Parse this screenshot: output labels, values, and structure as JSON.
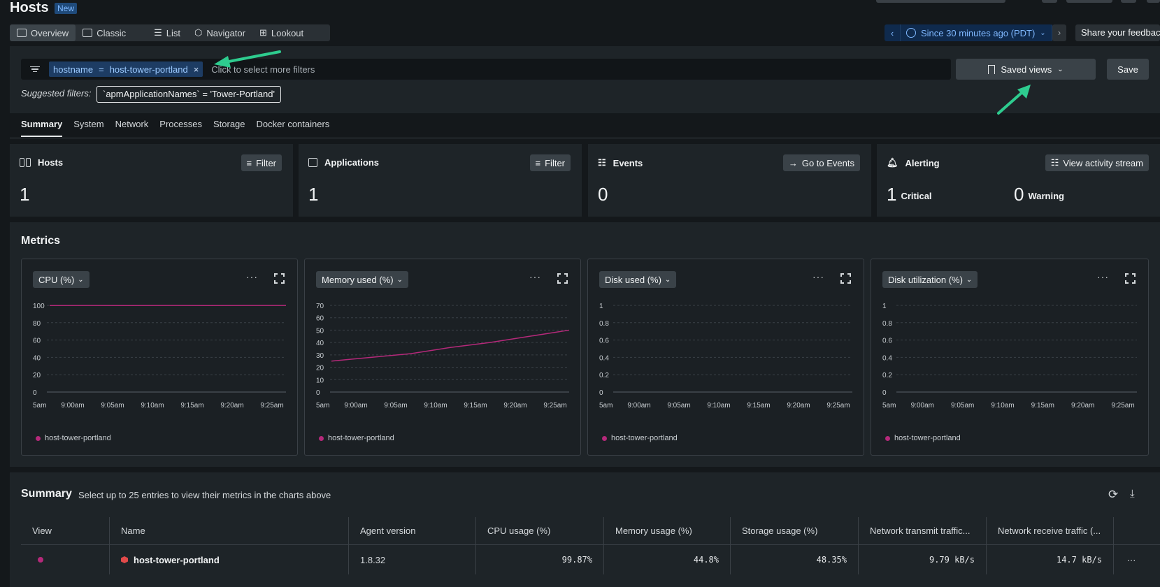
{
  "header": {
    "title": "Hosts",
    "badge": "New"
  },
  "view_tabs": [
    {
      "label": "Overview",
      "icon": "dashboard-icon",
      "active": true
    },
    {
      "label": "Classic",
      "icon": "table-icon",
      "active": false
    },
    {
      "label": "List",
      "icon": "list-icon",
      "active": false
    },
    {
      "label": "Navigator",
      "icon": "hex-cluster-icon",
      "active": false
    },
    {
      "label": "Lookout",
      "icon": "grid-icon",
      "active": false
    }
  ],
  "time_picker": {
    "label": "Since 30 minutes ago (PDT)"
  },
  "feedback": {
    "label": "Share your feedbac"
  },
  "filter": {
    "chip_key": "hostname",
    "chip_op": "=",
    "chip_value": "host-tower-portland",
    "placeholder": "Click to select more filters",
    "saved_views": "Saved views",
    "save": "Save",
    "suggested_label": "Suggested filters:",
    "suggested_value": "`apmApplicationNames` = 'Tower-Portland'"
  },
  "section_tabs": [
    "Summary",
    "System",
    "Network",
    "Processes",
    "Storage",
    "Docker containers"
  ],
  "cards": {
    "hosts": {
      "title": "Hosts",
      "button": "Filter",
      "value": "1"
    },
    "applications": {
      "title": "Applications",
      "button": "Filter",
      "value": "1"
    },
    "events": {
      "title": "Events",
      "button": "Go to Events",
      "value": "0"
    },
    "alerting": {
      "title": "Alerting",
      "button": "View activity stream",
      "critical_value": "1",
      "critical_label": "Critical",
      "warning_value": "0",
      "warning_label": "Warning"
    }
  },
  "metrics": {
    "title": "Metrics"
  },
  "chart_data": [
    {
      "type": "line",
      "title": "CPU (%)",
      "x": [
        "5am",
        "9:00am",
        "9:05am",
        "9:10am",
        "9:15am",
        "9:20am",
        "9:25am"
      ],
      "yticks": [
        "100",
        "80",
        "60",
        "40",
        "20",
        "0"
      ],
      "ylim": [
        0,
        100
      ],
      "series": [
        {
          "name": "host-tower-portland",
          "x": [
            0,
            1,
            2,
            3,
            4,
            5,
            6
          ],
          "values": [
            99.8,
            99.9,
            99.8,
            99.9,
            99.8,
            99.9,
            99.87
          ]
        }
      ],
      "color": "#b5297a"
    },
    {
      "type": "line",
      "title": "Memory used (%)",
      "x": [
        "5am",
        "9:00am",
        "9:05am",
        "9:10am",
        "9:15am",
        "9:20am",
        "9:25am"
      ],
      "yticks": [
        "70",
        "60",
        "50",
        "40",
        "30",
        "20",
        "10",
        "0"
      ],
      "ylim": [
        0,
        70
      ],
      "series": [
        {
          "name": "host-tower-portland",
          "x": [
            0,
            1,
            2,
            3,
            4,
            5,
            6
          ],
          "values": [
            25,
            28,
            31,
            36,
            40,
            45,
            50
          ]
        }
      ],
      "color": "#b5297a"
    },
    {
      "type": "line",
      "title": "Disk used (%)",
      "x": [
        "5am",
        "9:00am",
        "9:05am",
        "9:10am",
        "9:15am",
        "9:20am",
        "9:25am"
      ],
      "yticks": [
        "1",
        "0.8",
        "0.6",
        "0.4",
        "0.2",
        "0"
      ],
      "ylim": [
        0,
        1
      ],
      "series": [
        {
          "name": "host-tower-portland",
          "x": [],
          "values": []
        }
      ],
      "color": "#b5297a"
    },
    {
      "type": "line",
      "title": "Disk utilization (%)",
      "x": [
        "5am",
        "9:00am",
        "9:05am",
        "9:10am",
        "9:15am",
        "9:20am",
        "9:25am"
      ],
      "yticks": [
        "1",
        "0.8",
        "0.6",
        "0.4",
        "0.2",
        "0"
      ],
      "ylim": [
        0,
        1
      ],
      "series": [
        {
          "name": "host-tower-portland",
          "x": [],
          "values": []
        }
      ],
      "color": "#b5297a"
    }
  ],
  "summary": {
    "title": "Summary",
    "subtitle": "Select up to 25 entries to view their metrics in the charts above",
    "columns": [
      "View",
      "Name",
      "Agent version",
      "CPU usage (%)",
      "Memory usage (%)",
      "Storage usage (%)",
      "Network transmit traffic...",
      "Network receive traffic (..."
    ],
    "rows": [
      {
        "name": "host-tower-portland",
        "agent_version": "1.8.32",
        "cpu": "99.87%",
        "memory": "44.8%",
        "storage": "48.35%",
        "net_tx": "9.79 kB/s",
        "net_rx": "14.7 kB/s",
        "more": "···"
      }
    ]
  }
}
